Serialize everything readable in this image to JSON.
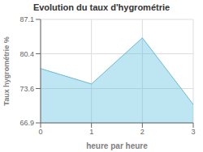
{
  "chart_data": {
    "type": "area",
    "title": "Evolution du taux d'hygrométrie",
    "xlabel": "heure par heure",
    "ylabel": "Taux hygrométrie %",
    "x": [
      0,
      1,
      2,
      3
    ],
    "values": [
      77.5,
      74.5,
      83.5,
      70.5
    ],
    "xlim": [
      0,
      3
    ],
    "ylim": [
      66.9,
      87.1
    ],
    "xticks": [
      0,
      1,
      2,
      3
    ],
    "yticks": [
      66.9,
      73.6,
      80.4,
      87.1
    ],
    "color": "#5bbfde",
    "grid": true
  }
}
